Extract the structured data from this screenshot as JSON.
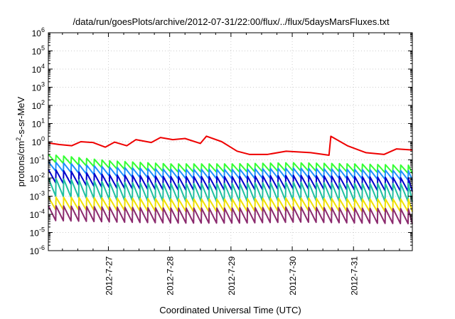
{
  "chart_data": {
    "type": "line",
    "title": "/data/run/goesPlots/archive/2012-07-31/22:00/flux/../flux/5daysMarsFluxes.txt",
    "xlabel": "Coordinated Universal Time (UTC)",
    "ylabel_main": "protons/cm",
    "ylabel_sup": "2",
    "ylabel_tail": "-s-sr-MeV",
    "yscale": "log",
    "ylim_exp": [
      -6,
      6
    ],
    "ytick_base": "10",
    "ytick_exponents": [
      "-6",
      "-5",
      "-4",
      "-3",
      "-2",
      "-1",
      "0",
      "1",
      "2",
      "3",
      "4",
      "5",
      "6"
    ],
    "x_range_days": [
      26.02,
      31.96
    ],
    "xticks": [
      {
        "label": "2012-7-27",
        "day": 27
      },
      {
        "label": "2012-7-28",
        "day": 28
      },
      {
        "label": "2012-7-29",
        "day": 29
      },
      {
        "label": "2012-7-30",
        "day": 30
      },
      {
        "label": "2012-7-31",
        "day": 31
      }
    ],
    "grid": true,
    "legend": "none",
    "series": [
      {
        "color": "#ee0000",
        "pattern": "smooth",
        "anchors": [
          [
            26.02,
            0.85
          ],
          [
            26.2,
            0.7
          ],
          [
            26.4,
            0.6
          ],
          [
            26.55,
            1.0
          ],
          [
            26.75,
            0.9
          ],
          [
            26.95,
            0.5
          ],
          [
            27.1,
            0.95
          ],
          [
            27.3,
            0.6
          ],
          [
            27.45,
            1.3
          ],
          [
            27.7,
            0.9
          ],
          [
            27.85,
            1.7
          ],
          [
            28.05,
            1.3
          ],
          [
            28.25,
            1.5
          ],
          [
            28.5,
            0.8
          ],
          [
            28.6,
            2.0
          ],
          [
            28.85,
            1.0
          ],
          [
            29.1,
            0.3
          ],
          [
            29.3,
            0.2
          ],
          [
            29.6,
            0.2
          ],
          [
            29.9,
            0.3
          ],
          [
            30.3,
            0.25
          ],
          [
            30.6,
            0.18
          ],
          [
            30.63,
            2.0
          ],
          [
            30.9,
            0.6
          ],
          [
            31.2,
            0.25
          ],
          [
            31.5,
            0.2
          ],
          [
            31.7,
            0.4
          ],
          [
            31.96,
            0.35
          ]
        ]
      },
      {
        "color": "#33ff33",
        "pattern": "sawtooth",
        "period": 0.125,
        "peak": [
          [
            26.02,
            0.2
          ],
          [
            27.0,
            0.09
          ],
          [
            28.0,
            0.06
          ],
          [
            29.0,
            0.06
          ],
          [
            30.0,
            0.07
          ],
          [
            31.0,
            0.06
          ],
          [
            31.96,
            0.05
          ]
        ],
        "ratio": 0.35
      },
      {
        "color": "#1e90ff",
        "pattern": "sawtooth",
        "period": 0.125,
        "peak": [
          [
            26.02,
            0.08
          ],
          [
            27.0,
            0.04
          ],
          [
            28.0,
            0.03
          ],
          [
            29.0,
            0.03
          ],
          [
            30.0,
            0.035
          ],
          [
            31.0,
            0.03
          ],
          [
            31.96,
            0.025
          ]
        ],
        "ratio": 0.3
      },
      {
        "color": "#0000cc",
        "pattern": "sawtooth",
        "period": 0.125,
        "peak": [
          [
            26.02,
            0.03
          ],
          [
            27.0,
            0.015
          ],
          [
            28.0,
            0.012
          ],
          [
            29.0,
            0.012
          ],
          [
            30.0,
            0.014
          ],
          [
            31.0,
            0.012
          ],
          [
            31.96,
            0.01
          ]
        ],
        "ratio": 0.18
      },
      {
        "color": "#20c0a0",
        "pattern": "sawtooth",
        "period": 0.125,
        "peak": [
          [
            26.02,
            0.01
          ],
          [
            27.0,
            0.006
          ],
          [
            28.0,
            0.005
          ],
          [
            29.0,
            0.005
          ],
          [
            30.0,
            0.006
          ],
          [
            31.0,
            0.005
          ],
          [
            31.96,
            0.005
          ]
        ],
        "ratio": 0.1
      },
      {
        "color": "#f0e000",
        "pattern": "sawtooth",
        "period": 0.125,
        "peak": [
          [
            26.02,
            0.0009
          ],
          [
            27.0,
            0.0008
          ],
          [
            28.0,
            0.0007
          ],
          [
            29.0,
            0.0007
          ],
          [
            30.0,
            0.0008
          ],
          [
            31.0,
            0.0007
          ],
          [
            31.96,
            0.0007
          ]
        ],
        "ratio": 0.2
      },
      {
        "color": "#8b2a6e",
        "pattern": "sawtooth",
        "period": 0.125,
        "peak": [
          [
            26.02,
            0.0003
          ],
          [
            27.0,
            0.00025
          ],
          [
            28.0,
            0.00022
          ],
          [
            29.0,
            0.00022
          ],
          [
            30.0,
            0.00025
          ],
          [
            31.0,
            0.00022
          ],
          [
            31.96,
            0.0002
          ]
        ],
        "ratio": 0.15
      }
    ]
  }
}
